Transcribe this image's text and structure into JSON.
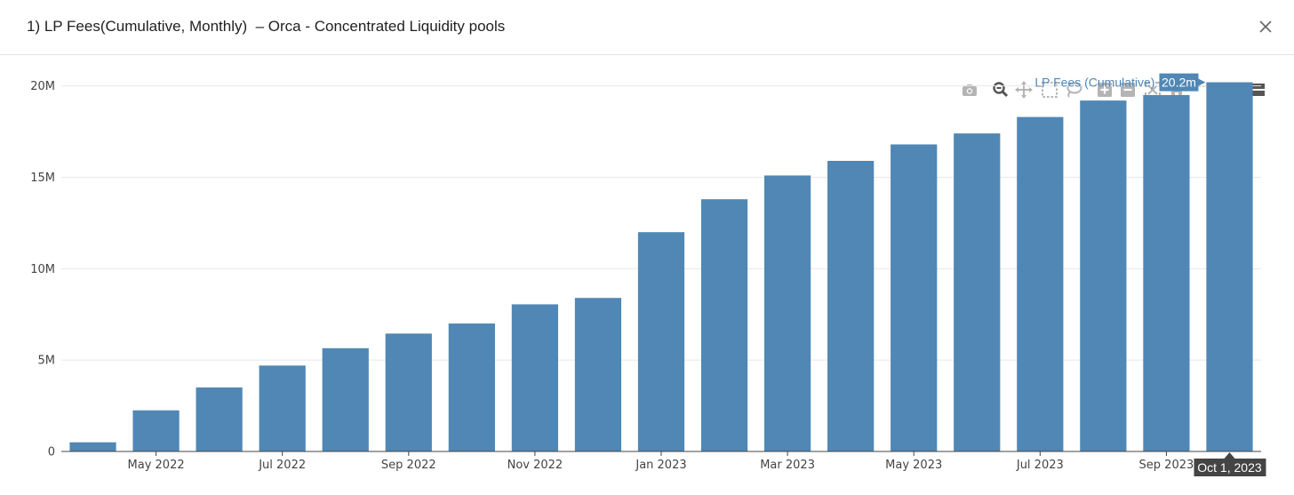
{
  "modal": {
    "title": "1) LP Fees(Cumulative, Monthly)  – Orca - Concentrated Liquidity pools"
  },
  "toolbar": {
    "icons": [
      "camera-icon",
      "zoom-icon",
      "pan-icon",
      "box-select-icon",
      "lasso-select-icon",
      "zoom-in-icon",
      "zoom-out-icon",
      "autoscale-icon",
      "reset-axes-icon",
      "spike-lines-icon",
      "hover-closest-icon",
      "hover-compare-icon"
    ]
  },
  "colors": {
    "bar": "#5087b5",
    "grid": "#e8e8e8",
    "axis": "#444444",
    "tooltip_bg": "#444444"
  },
  "chart_data": {
    "type": "bar",
    "categories": [
      "Apr 2022",
      "May 2022",
      "Jun 2022",
      "Jul 2022",
      "Aug 2022",
      "Sep 2022",
      "Oct 2022",
      "Nov 2022",
      "Dec 2022",
      "Jan 2023",
      "Feb 2023",
      "Mar 2023",
      "Apr 2023",
      "May 2023",
      "Jun 2023",
      "Jul 2023",
      "Aug 2023",
      "Sep 2023",
      "Oct 2023"
    ],
    "series": [
      {
        "name": "LP Fees (Cumulative)",
        "values": [
          0.5,
          2.25,
          3.5,
          4.7,
          5.65,
          6.45,
          7.0,
          8.05,
          8.4,
          12.0,
          13.8,
          15.1,
          15.9,
          16.8,
          17.4,
          18.3,
          19.2,
          19.5,
          20.2
        ]
      }
    ],
    "value_unit": "M",
    "x_tick_labels": [
      "May 2022",
      "Jul 2022",
      "Sep 2022",
      "Nov 2022",
      "Jan 2023",
      "Mar 2023",
      "May 2023",
      "Jul 2023",
      "Sep 2023"
    ],
    "y_tick_labels": [
      "0",
      "5M",
      "10M",
      "15M",
      "20M"
    ],
    "y_ticks": [
      0,
      5,
      10,
      15,
      20
    ],
    "ylim": [
      0,
      21.2
    ],
    "grid": true,
    "hover": {
      "index": 18,
      "series_label": "LP Fees (Cumulative)",
      "value_label": "20.2m",
      "x_label": "Oct 1, 2023"
    }
  }
}
